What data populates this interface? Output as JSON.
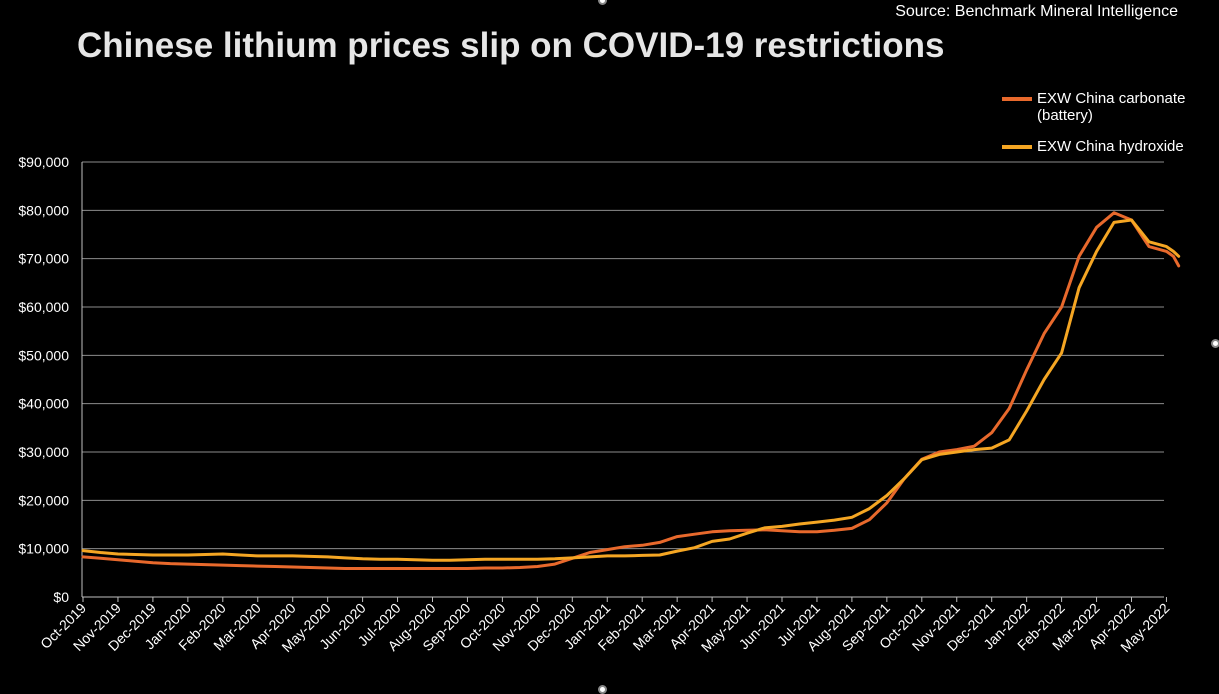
{
  "source": "Source: Benchmark Mineral Intelligence",
  "chart_data": {
    "type": "line",
    "title": "Chinese lithium prices slip on COVID-19 restrictions",
    "xlabel": "",
    "ylabel": "",
    "ylim": [
      0,
      90000
    ],
    "yticks": [
      0,
      10000,
      20000,
      30000,
      40000,
      50000,
      60000,
      70000,
      80000,
      90000
    ],
    "ytick_labels": [
      "$0",
      "$10,000",
      "$20,000",
      "$30,000",
      "$40,000",
      "$50,000",
      "$60,000",
      "$70,000",
      "$80,000",
      "$90,000"
    ],
    "xtick_labels": [
      "Oct-2019",
      "Nov-2019",
      "Dec-2019",
      "Jan-2020",
      "Feb-2020",
      "Mar-2020",
      "Apr-2020",
      "May-2020",
      "Jun-2020",
      "Jul-2020",
      "Aug-2020",
      "Sep-2020",
      "Oct-2020",
      "Nov-2020",
      "Dec-2020",
      "Jan-2021",
      "Feb-2021",
      "Mar-2021",
      "Apr-2021",
      "May-2021",
      "Jun-2021",
      "Jul-2021",
      "Aug-2021",
      "Sep-2021",
      "Oct-2021",
      "Nov-2021",
      "Dec-2021",
      "Jan-2022",
      "Feb-2022",
      "Mar-2022",
      "Apr-2022",
      "May-2022"
    ],
    "grid": true,
    "legend_position": "top-right",
    "series": [
      {
        "name": "EXW China carbonate (battery)",
        "color": "#e8692c",
        "x": [
          0,
          0.5,
          1,
          1.5,
          2,
          2.5,
          3,
          3.5,
          4,
          4.5,
          5,
          5.5,
          6,
          6.5,
          7,
          7.5,
          8,
          8.5,
          9,
          9.5,
          10,
          10.5,
          11,
          11.5,
          12,
          12.5,
          13,
          13.5,
          14,
          14.5,
          15,
          15.5,
          16,
          16.5,
          17,
          17.5,
          18,
          18.5,
          19,
          19.5,
          20,
          20.5,
          21,
          21.5,
          22,
          22.5,
          23,
          23.5,
          24,
          24.5,
          25,
          25.5,
          26,
          26.5,
          27,
          27.5,
          28,
          28.5,
          29,
          29.5,
          30,
          30.5,
          31,
          31.2,
          31.35
        ],
        "values": [
          8300,
          8000,
          7700,
          7400,
          7100,
          6900,
          6800,
          6700,
          6600,
          6500,
          6400,
          6300,
          6200,
          6100,
          6000,
          5900,
          5900,
          5900,
          5900,
          5900,
          5900,
          5900,
          5900,
          6000,
          6000,
          6100,
          6300,
          6800,
          8000,
          9200,
          9800,
          10400,
          10700,
          11300,
          12500,
          13000,
          13500,
          13700,
          13800,
          13900,
          13700,
          13500,
          13500,
          13800,
          14200,
          16000,
          19500,
          24500,
          28500,
          30000,
          30500,
          31200,
          34000,
          39000,
          47000,
          54500,
          60000,
          70500,
          76500,
          79500,
          78000,
          72500,
          71500,
          70500,
          68500
        ]
      },
      {
        "name": "EXW China hydroxide",
        "color": "#f5a623",
        "x": [
          0,
          0.5,
          1,
          1.5,
          2,
          2.5,
          3,
          3.5,
          4,
          4.5,
          5,
          5.5,
          6,
          6.5,
          7,
          7.5,
          8,
          8.5,
          9,
          9.5,
          10,
          10.5,
          11,
          11.5,
          12,
          12.5,
          13,
          13.5,
          14,
          14.5,
          15,
          15.5,
          16,
          16.5,
          17,
          17.5,
          18,
          18.5,
          19,
          19.5,
          20,
          20.5,
          21,
          21.5,
          22,
          22.5,
          23,
          23.5,
          24,
          24.5,
          25,
          25.5,
          26,
          26.5,
          27,
          27.5,
          28,
          28.5,
          29,
          29.5,
          30,
          30.5,
          31,
          31.2,
          31.35
        ],
        "values": [
          9600,
          9200,
          8900,
          8800,
          8700,
          8700,
          8700,
          8800,
          8900,
          8700,
          8500,
          8500,
          8500,
          8400,
          8300,
          8100,
          7900,
          7800,
          7800,
          7700,
          7600,
          7600,
          7700,
          7800,
          7800,
          7800,
          7800,
          7900,
          8100,
          8300,
          8500,
          8500,
          8600,
          8700,
          9500,
          10200,
          11500,
          12000,
          13200,
          14300,
          14600,
          15100,
          15500,
          15900,
          16500,
          18300,
          21000,
          24500,
          28400,
          29500,
          30000,
          30500,
          30800,
          32500,
          38500,
          45000,
          50500,
          64000,
          71500,
          77500,
          78000,
          73500,
          72500,
          71500,
          70500
        ]
      }
    ]
  }
}
